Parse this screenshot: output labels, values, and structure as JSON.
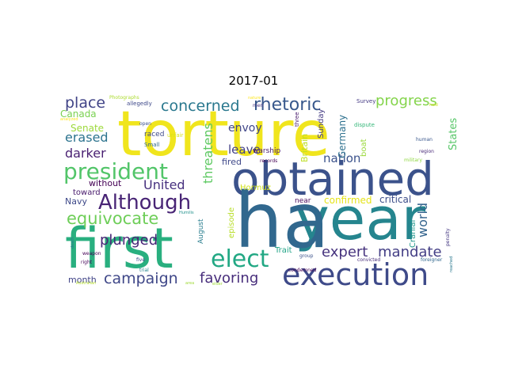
{
  "title": "2017-01",
  "words": [
    {
      "text": "torture",
      "color": "#f0e51d"
    },
    {
      "text": "obtained",
      "color": "#3b528b"
    },
    {
      "text": "year",
      "color": "#25858e"
    },
    {
      "text": "ha",
      "color": "#31688e"
    },
    {
      "text": "first",
      "color": "#29af7f"
    },
    {
      "text": "execution",
      "color": "#3e4a89"
    },
    {
      "text": "president",
      "color": "#52c569"
    },
    {
      "text": "Although",
      "color": "#482475"
    },
    {
      "text": "elect",
      "color": "#22a884"
    },
    {
      "text": "equivocate",
      "color": "#6ece58"
    },
    {
      "text": "rhetoric",
      "color": "#38588c"
    },
    {
      "text": "concerned",
      "color": "#2a788e"
    },
    {
      "text": "progress",
      "color": "#84d44b"
    },
    {
      "text": "place",
      "color": "#414487"
    },
    {
      "text": "campaign",
      "color": "#3f4788"
    },
    {
      "text": "favoring",
      "color": "#472d7b"
    },
    {
      "text": "plunged",
      "color": "#482677"
    },
    {
      "text": "expert",
      "color": "#46337e"
    },
    {
      "text": "mandate",
      "color": "#433e85"
    },
    {
      "text": "erased",
      "color": "#2c738e"
    },
    {
      "text": "darker",
      "color": "#481f71"
    },
    {
      "text": "United",
      "color": "#46307e"
    },
    {
      "text": "leave",
      "color": "#424086"
    },
    {
      "text": "envoy",
      "color": "#404688"
    },
    {
      "text": "threatens",
      "color": "#5ec962"
    },
    {
      "text": "world",
      "color": "#33638d"
    },
    {
      "text": "nation",
      "color": "#3b528b"
    },
    {
      "text": "Senate",
      "color": "#9dd93b"
    },
    {
      "text": "Canada",
      "color": "#7ad151"
    },
    {
      "text": "Navy",
      "color": "#3e4989"
    },
    {
      "text": "without",
      "color": "#440154"
    },
    {
      "text": "toward",
      "color": "#481a6c"
    },
    {
      "text": "month",
      "color": "#414487"
    },
    {
      "text": "States",
      "color": "#56c667"
    },
    {
      "text": "Germany",
      "color": "#2d708e"
    },
    {
      "text": "Britain",
      "color": "#bddf26"
    },
    {
      "text": "Sunday",
      "color": "#443a83"
    },
    {
      "text": "warship",
      "color": "#48186a"
    },
    {
      "text": "fired",
      "color": "#3f4889"
    },
    {
      "text": "Hormuz",
      "color": "#d2e21b"
    },
    {
      "text": "confirmed",
      "color": "#e5e419"
    },
    {
      "text": "critical",
      "color": "#3d4e8a"
    },
    {
      "text": "near",
      "color": "#46085c"
    },
    {
      "text": "boat",
      "color": "#9bd93c"
    },
    {
      "text": "Trait",
      "color": "#20a386"
    },
    {
      "text": "episode",
      "color": "#b8de29"
    },
    {
      "text": "August",
      "color": "#287d8e"
    },
    {
      "text": "Cranial",
      "color": "#1f968b"
    },
    {
      "text": "raced",
      "color": "#3e4989"
    },
    {
      "text": "unfair",
      "color": "#d8e219"
    },
    {
      "text": "Small",
      "color": "#31688e"
    },
    {
      "text": "open",
      "color": "#3b528b"
    },
    {
      "text": "allegedly",
      "color": "#3e4989"
    },
    {
      "text": "Photographs",
      "color": "#addc30"
    },
    {
      "text": "Survey",
      "color": "#443983"
    },
    {
      "text": "three",
      "color": "#481b6d"
    },
    {
      "text": "records",
      "color": "#440154"
    },
    {
      "text": "men",
      "color": "#46327e"
    },
    {
      "text": "dispute",
      "color": "#35b779"
    },
    {
      "text": "human",
      "color": "#39568c"
    },
    {
      "text": "military",
      "color": "#90d743"
    },
    {
      "text": "region",
      "color": "#482878"
    },
    {
      "text": "hold",
      "color": "#cde11d"
    },
    {
      "text": "Humilis",
      "color": "#21918c"
    },
    {
      "text": "weapon",
      "color": "#440154"
    },
    {
      "text": "right",
      "color": "#46075a"
    },
    {
      "text": "five",
      "color": "#3e4989"
    },
    {
      "text": "trial",
      "color": "#25858e"
    },
    {
      "text": "group",
      "color": "#3b528b"
    },
    {
      "text": "condemned",
      "color": "#440154"
    },
    {
      "text": "convicted",
      "color": "#472d7b"
    },
    {
      "text": "foreigner",
      "color": "#31688e"
    },
    {
      "text": "penalty",
      "color": "#453882"
    },
    {
      "text": "elder",
      "color": "#9fda3a"
    },
    {
      "text": "Australian",
      "color": "#b5de2b"
    },
    {
      "text": "death",
      "color": "#2a788e"
    },
    {
      "text": "nature",
      "color": "#fde725"
    },
    {
      "text": "analyzed",
      "color": "#fde725"
    },
    {
      "text": "area",
      "color": "#a0da39"
    },
    {
      "text": "reached",
      "color": "#2a788e"
    }
  ]
}
